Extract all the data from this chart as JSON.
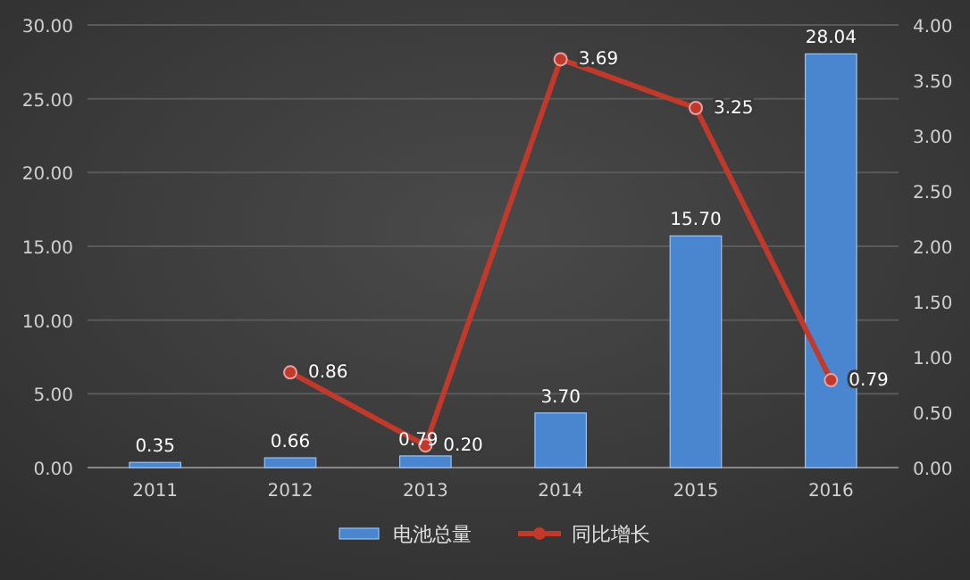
{
  "chart_data": {
    "type": "bar",
    "categories": [
      "2011",
      "2012",
      "2013",
      "2014",
      "2015",
      "2016"
    ],
    "series": [
      {
        "name": "电池总量",
        "color": "#4a86d0",
        "values": [
          0.35,
          0.66,
          0.79,
          3.7,
          15.7,
          28.04
        ],
        "value_labels": [
          "0.35",
          "0.66",
          "0.79",
          "3.70",
          "15.70",
          "28.04"
        ]
      },
      {
        "name": "同比增长",
        "type": "line",
        "axis": "y2",
        "color": "#c0392b",
        "marker": "circle",
        "values": [
          null,
          0.86,
          0.2,
          3.69,
          3.25,
          0.79
        ],
        "value_labels": [
          null,
          "0.86",
          "0.20",
          "3.69",
          "3.25",
          "0.79"
        ]
      }
    ],
    "ylim": [
      0,
      30
    ],
    "yticks": [
      {
        "value": 0,
        "label": "0.00"
      },
      {
        "value": 5,
        "label": "5.00"
      },
      {
        "value": 10,
        "label": "10.00"
      },
      {
        "value": 15,
        "label": "15.00"
      },
      {
        "value": 20,
        "label": "20.00"
      },
      {
        "value": 25,
        "label": "25.00"
      },
      {
        "value": 30,
        "label": "30.00"
      }
    ],
    "y2lim": [
      0,
      4
    ],
    "y2ticks": [
      {
        "value": 0,
        "label": "0.00"
      },
      {
        "value": 0.5,
        "label": "0.50"
      },
      {
        "value": 1,
        "label": "1.00"
      },
      {
        "value": 1.5,
        "label": "1.50"
      },
      {
        "value": 2,
        "label": "2.00"
      },
      {
        "value": 2.5,
        "label": "2.50"
      },
      {
        "value": 3,
        "label": "3.00"
      },
      {
        "value": 3.5,
        "label": "3.50"
      },
      {
        "value": 4,
        "label": "4.00"
      }
    ],
    "grid": "y",
    "legend": "bottom"
  }
}
